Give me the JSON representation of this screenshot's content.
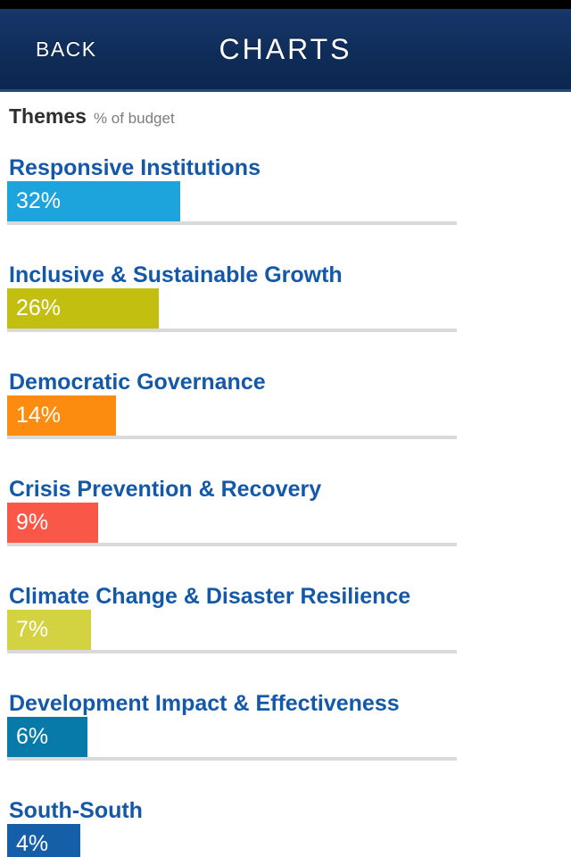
{
  "navbar": {
    "back_label": "BACK",
    "title": "CHARTS"
  },
  "section": {
    "title": "Themes",
    "subtitle": "% of budget"
  },
  "chart_data": {
    "type": "bar",
    "orientation": "horizontal",
    "title": "Themes",
    "subtitle": "% of budget",
    "unit": "% of budget",
    "categories": [
      "Responsive Institutions",
      "Inclusive & Sustainable Growth",
      "Democratic Governance",
      "Crisis Prevention & Recovery",
      "Climate Change & Disaster Resilience",
      "Development Impact & Effectiveness",
      "South-South"
    ],
    "values": [
      32,
      26,
      14,
      9,
      7,
      6,
      4
    ],
    "labels": [
      "32%",
      "26%",
      "14%",
      "9%",
      "7%",
      "6%",
      "4%"
    ],
    "colors": [
      "#1ea4dc",
      "#c3bf11",
      "#fb8c10",
      "#f95848",
      "#d3d240",
      "#077aaa",
      "#155fa9"
    ],
    "xlim": [
      0,
      100
    ],
    "grid": false,
    "legend": false
  },
  "colors": {
    "navbar_bg": "#0f2c58",
    "navbar_text": "#ffffff",
    "category_label": "#1459a9",
    "bar_value_text": "#ffffff",
    "track_line": "#d9d9d9",
    "heading_text": "#2e2e2e",
    "subtitle_text": "#7d7d7d",
    "status_strip": "#000000"
  }
}
